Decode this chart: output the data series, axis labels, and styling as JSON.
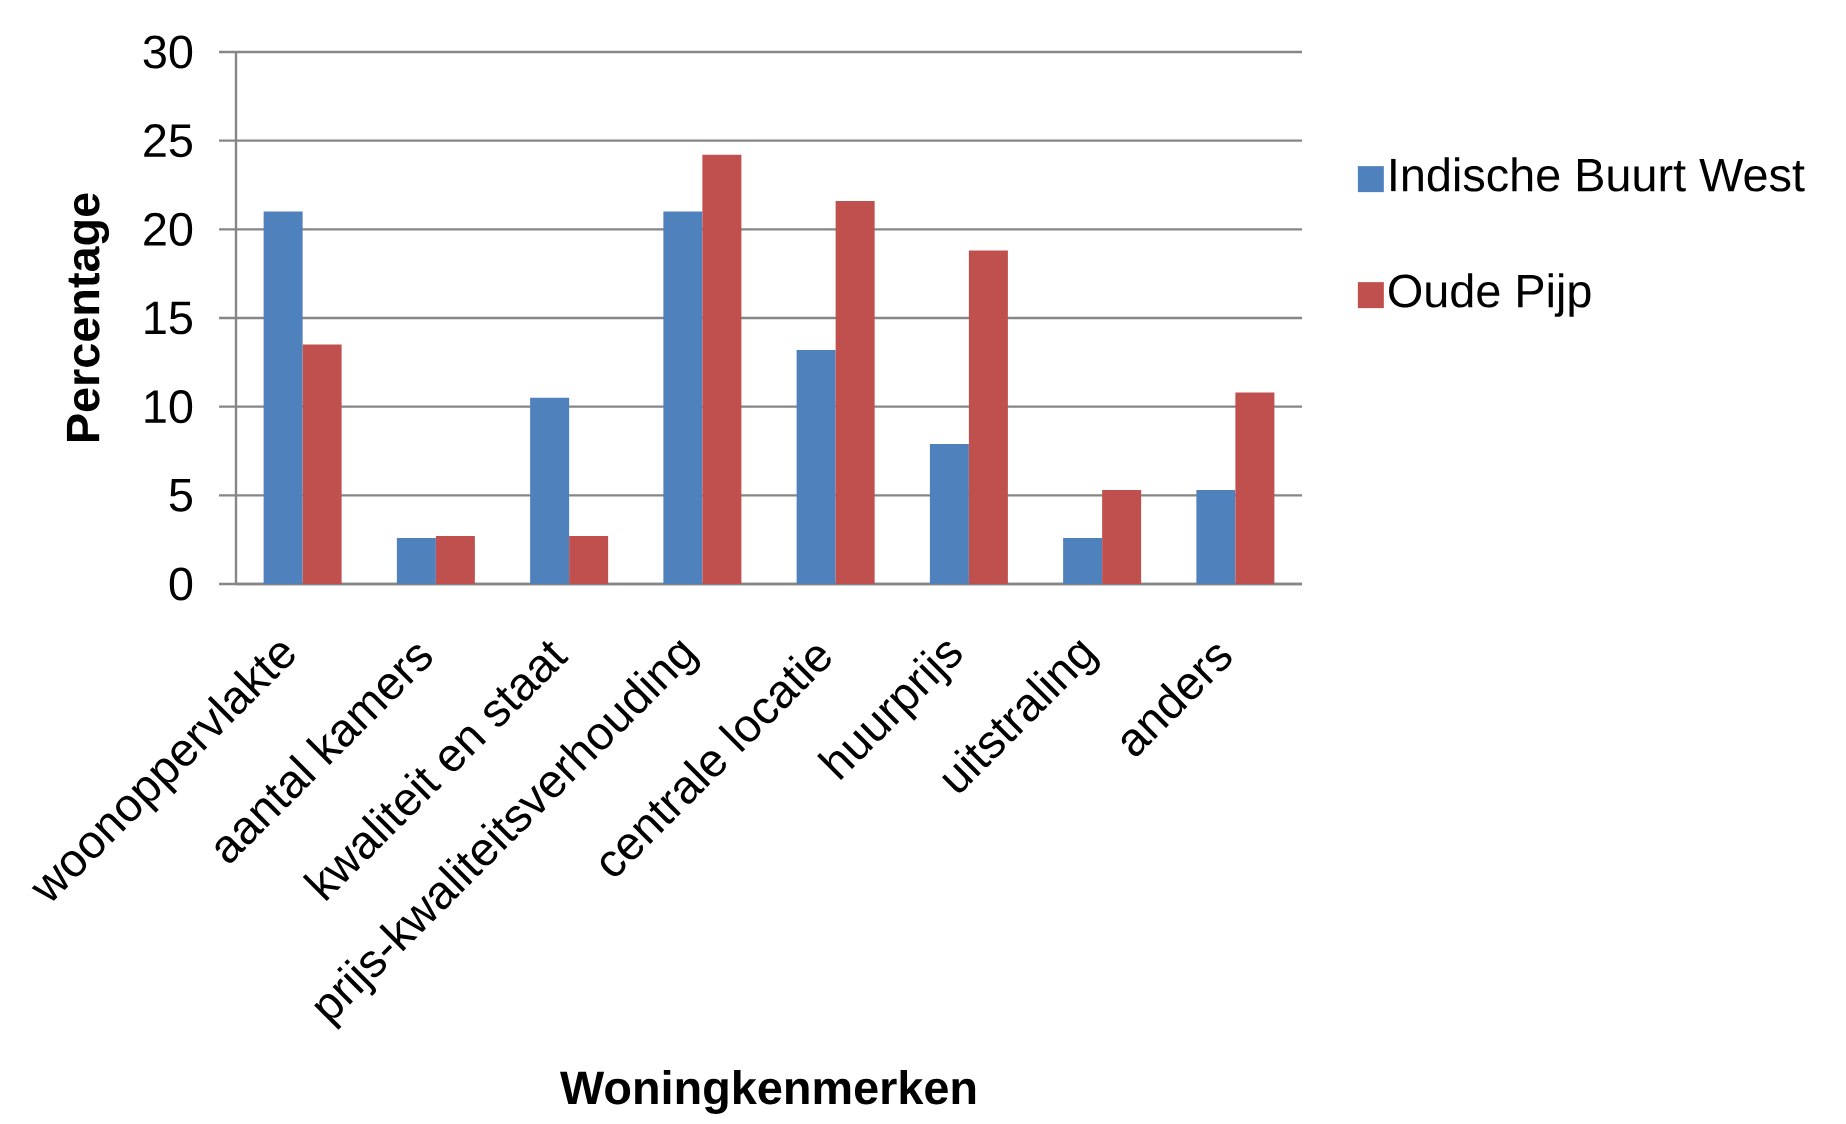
{
  "chart_data": {
    "type": "bar",
    "xlabel": "Woningkenmerken",
    "ylabel": "Percentage",
    "categories": [
      "woonoppervlakte",
      "aantal kamers",
      "kwaliteit en staat",
      "prijs-kwaliteitsverhouding",
      "centrale locatie",
      "huurprijs",
      "uitstraling",
      "anders"
    ],
    "series": [
      {
        "name": "Indische Buurt West",
        "color": "#4f81bd",
        "values": [
          21.0,
          2.6,
          10.5,
          21.0,
          13.2,
          7.9,
          2.6,
          5.3
        ]
      },
      {
        "name": "Oude Pijp",
        "color": "#c0504d",
        "values": [
          13.5,
          2.7,
          2.7,
          24.2,
          21.6,
          18.8,
          5.3,
          10.8
        ]
      }
    ],
    "ylim": [
      0,
      30
    ],
    "yticks": [
      0,
      5,
      10,
      15,
      20,
      25,
      30
    ],
    "grid": "y",
    "legend": "right"
  }
}
